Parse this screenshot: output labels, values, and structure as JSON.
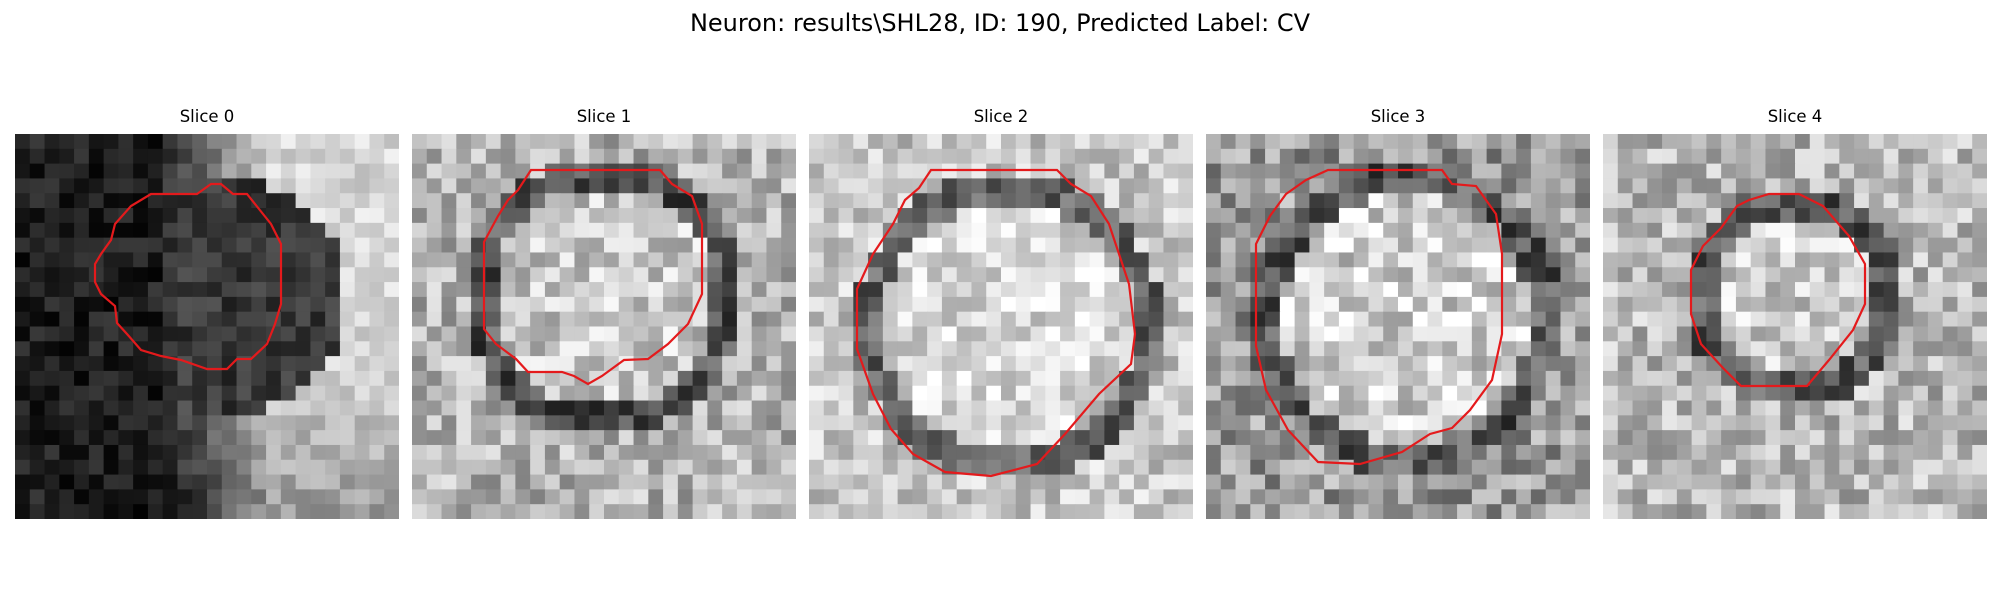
{
  "figure": {
    "title": "Neuron: results\\SHL28, ID: 190, Predicted Label: CV"
  },
  "panels": [
    {
      "title": "Slice 0",
      "image": "grayscale-microscopy-slice",
      "contour_color": "#e41a1c"
    },
    {
      "title": "Slice 1",
      "image": "grayscale-microscopy-slice",
      "contour_color": "#e41a1c"
    },
    {
      "title": "Slice 2",
      "image": "grayscale-microscopy-slice",
      "contour_color": "#e41a1c"
    },
    {
      "title": "Slice 3",
      "image": "grayscale-microscopy-slice",
      "contour_color": "#e41a1c"
    },
    {
      "title": "Slice 4",
      "image": "grayscale-microscopy-slice",
      "contour_color": "#e41a1c"
    }
  ]
}
